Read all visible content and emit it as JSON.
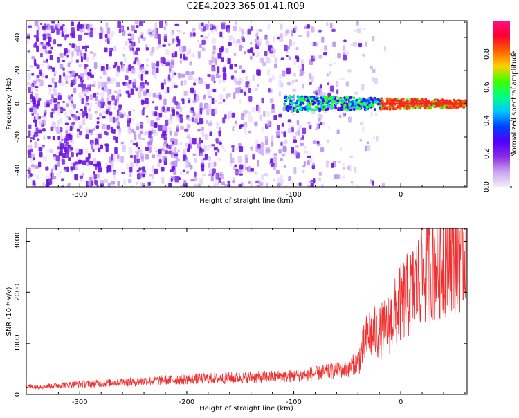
{
  "title": "C2E4.2023.365.01.41.R09",
  "chart_data": [
    {
      "type": "heatmap",
      "xlabel": "Height of straight line (km)",
      "ylabel": "Frequency (Hz)",
      "xlim": [
        -350,
        62
      ],
      "ylim": [
        -50,
        50
      ],
      "xticks": [
        -300,
        -200,
        -100,
        0
      ],
      "yticks": [
        -40,
        -20,
        0,
        20,
        40
      ],
      "grid": false,
      "colorbar": {
        "label": "Normalized spectral amplitude",
        "range": [
          0,
          1
        ],
        "ticks": [
          0.0,
          0.2,
          0.4,
          0.6,
          0.8
        ],
        "colors": [
          "#f2ecfa",
          "#c9a4f0",
          "#8a2be2",
          "#5000ff",
          "#0040ff",
          "#00c8ff",
          "#00ff80",
          "#40ff00",
          "#ffd000",
          "#ff6000",
          "#ff0030",
          "#ff1080"
        ]
      },
      "description_points": {
        "noise_region_end_km": -30,
        "carrier_band_start_km": -110,
        "carrier_center_hz": 0,
        "carrier_halfwidth_hz": [
          5,
          2
        ]
      }
    },
    {
      "type": "line",
      "xlabel": "Height of straight line (km)",
      "ylabel": "SNR (10 * v/v)",
      "xlim": [
        -350,
        62
      ],
      "ylim": [
        0,
        3250
      ],
      "xticks": [
        -300,
        -200,
        -100,
        0
      ],
      "yticks": [
        0,
        1000,
        2000,
        3000
      ],
      "grid": false,
      "series": [
        {
          "color": "#f03030",
          "x": [
            -350,
            -300,
            -250,
            -200,
            -150,
            -100,
            -75,
            -50,
            -40,
            -30,
            -20,
            -10,
            0,
            10,
            20,
            30,
            40,
            50,
            62
          ],
          "y": [
            150,
            200,
            250,
            300,
            330,
            360,
            420,
            500,
            650,
            1200,
            1200,
            1400,
            1800,
            2000,
            2300,
            2500,
            2700,
            2800,
            2900
          ]
        }
      ]
    }
  ]
}
